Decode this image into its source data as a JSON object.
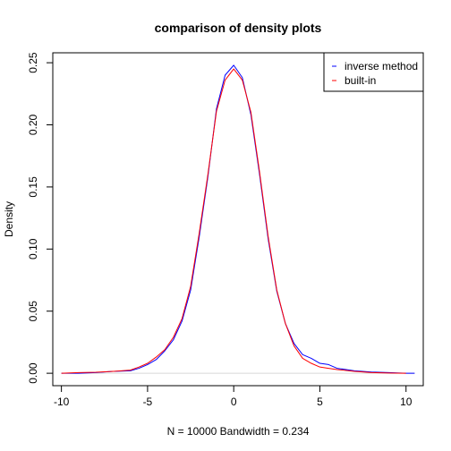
{
  "chart_data": {
    "type": "line",
    "title": "comparison of density plots",
    "xlabel": "N = 10000   Bandwidth = 0.234",
    "ylabel": "Density",
    "xlim": [
      -10.5,
      11.0
    ],
    "ylim": [
      -0.01,
      0.258
    ],
    "x_ticks": [
      -10,
      -5,
      0,
      5,
      10
    ],
    "x_tick_labels": [
      "-10",
      "-5",
      "0",
      "5",
      "10"
    ],
    "y_ticks": [
      0.0,
      0.05,
      0.1,
      0.15,
      0.2,
      0.25
    ],
    "y_tick_labels": [
      "0.00",
      "0.05",
      "0.10",
      "0.15",
      "0.20",
      "0.25"
    ],
    "grid": false,
    "legend_position": "top-right",
    "colors": {
      "inverse method": "#0000ff",
      "built-in": "#ff0000"
    },
    "legend": [
      "inverse method",
      "built-in"
    ],
    "series": [
      {
        "name": "inverse method",
        "color": "#0000ff",
        "x": [
          -10.0,
          -9.0,
          -8.0,
          -7.0,
          -6.0,
          -5.5,
          -5.0,
          -4.5,
          -4.0,
          -3.5,
          -3.0,
          -2.5,
          -2.0,
          -1.5,
          -1.0,
          -0.5,
          0.0,
          0.5,
          1.0,
          1.5,
          2.0,
          2.5,
          3.0,
          3.5,
          4.0,
          4.5,
          5.0,
          5.5,
          6.0,
          7.0,
          8.0,
          9.0,
          10.0,
          10.5
        ],
        "y": [
          0.0,
          0.0,
          0.0005,
          0.0015,
          0.002,
          0.004,
          0.007,
          0.011,
          0.018,
          0.027,
          0.042,
          0.067,
          0.11,
          0.158,
          0.213,
          0.24,
          0.248,
          0.238,
          0.208,
          0.16,
          0.108,
          0.066,
          0.04,
          0.024,
          0.015,
          0.012,
          0.008,
          0.007,
          0.004,
          0.002,
          0.001,
          0.0005,
          0.0,
          0.0
        ]
      },
      {
        "name": "built-in",
        "color": "#ff0000",
        "x": [
          -10.0,
          -9.0,
          -8.0,
          -7.0,
          -6.0,
          -5.5,
          -5.0,
          -4.5,
          -4.0,
          -3.5,
          -3.0,
          -2.5,
          -2.0,
          -1.5,
          -1.0,
          -0.5,
          0.0,
          0.5,
          1.0,
          1.5,
          2.0,
          2.5,
          3.0,
          3.5,
          4.0,
          4.5,
          5.0,
          5.5,
          6.0,
          7.0,
          8.0,
          9.0,
          10.0
        ],
        "y": [
          0.0,
          0.0005,
          0.0008,
          0.0015,
          0.0025,
          0.005,
          0.008,
          0.013,
          0.019,
          0.029,
          0.044,
          0.07,
          0.113,
          0.16,
          0.211,
          0.236,
          0.245,
          0.236,
          0.21,
          0.162,
          0.11,
          0.067,
          0.04,
          0.022,
          0.012,
          0.008,
          0.005,
          0.004,
          0.003,
          0.0015,
          0.0005,
          0.0002,
          0.0
        ]
      }
    ]
  }
}
